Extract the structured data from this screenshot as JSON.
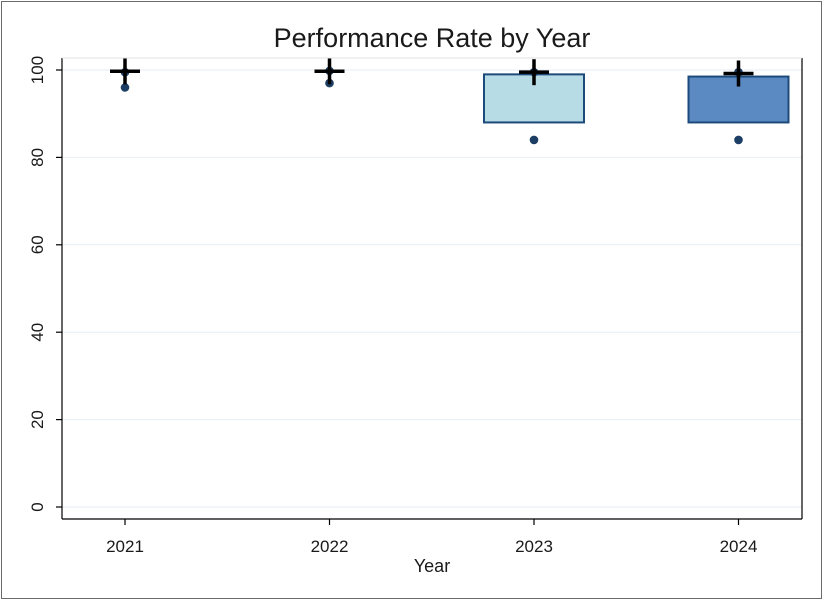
{
  "chart_data": {
    "type": "box",
    "title": "Performance Rate by Year",
    "xlabel": "Year",
    "ylabel": "",
    "categories": [
      "2021",
      "2022",
      "2023",
      "2024"
    ],
    "ylim": [
      0,
      100
    ],
    "yticks": [
      0,
      20,
      40,
      60,
      80,
      100
    ],
    "grid": true,
    "legend": "none",
    "boxes": [
      {
        "category": "2021",
        "q1": 100,
        "median": 100,
        "q3": 100,
        "whisker_low": 100,
        "whisker_high": 100,
        "outliers": [
          96,
          99.5
        ],
        "mean": 99.7,
        "color": "#b8d0e6"
      },
      {
        "category": "2022",
        "q1": 100,
        "median": 100,
        "q3": 100,
        "whisker_low": 100,
        "whisker_high": 100,
        "outliers": [
          97,
          99.8
        ],
        "mean": 99.7,
        "color": "#b8d0e6"
      },
      {
        "category": "2023",
        "q1": 88,
        "median": 99,
        "q3": 99,
        "whisker_low": 88,
        "whisker_high": 99,
        "outliers": [
          84,
          99.5
        ],
        "mean": 99.5,
        "color": "#b8dce6"
      },
      {
        "category": "2024",
        "q1": 88,
        "median": 98.5,
        "q3": 98.5,
        "whisker_low": 88,
        "whisker_high": 98.5,
        "outliers": [
          84,
          99.5
        ],
        "mean": 99.2,
        "color": "#5b89c2"
      }
    ],
    "colors": {
      "box_edge": "#1c4a7a",
      "point": "#1c3e64",
      "grid": "#e6eef5",
      "axis": "#000000"
    }
  }
}
